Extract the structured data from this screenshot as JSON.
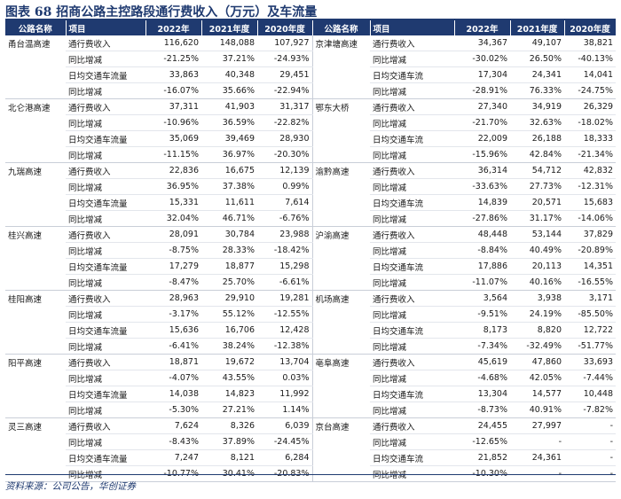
{
  "title": "图表 68  招商公路主控路段通行费收入（万元）及车流量",
  "headers": [
    "公路名称",
    "项目",
    "2022年",
    "2021年度",
    "2020年度",
    "公路名称",
    "项目",
    "2022年",
    "2021年度",
    "2020年度"
  ],
  "left_groups": [
    {
      "road": "甬台温高速",
      "rows": [
        [
          "通行费收入",
          "116,620",
          "148,088",
          "107,927"
        ],
        [
          "同比增减",
          "-21.25%",
          "37.21%",
          "-24.93%"
        ],
        [
          "日均交通车流量",
          "33,863",
          "40,348",
          "29,451"
        ],
        [
          "同比增减",
          "-16.07%",
          "35.66%",
          "-22.94%"
        ]
      ]
    },
    {
      "road": "北仑港高速",
      "rows": [
        [
          "通行费收入",
          "37,311",
          "41,903",
          "31,317"
        ],
        [
          "同比增减",
          "-10.96%",
          "36.59%",
          "-22.82%"
        ],
        [
          "日均交通车流量",
          "35,069",
          "39,469",
          "28,930"
        ],
        [
          "同比增减",
          "-11.15%",
          "36.97%",
          "-20.30%"
        ]
      ]
    },
    {
      "road": "九瑞高速",
      "rows": [
        [
          "通行费收入",
          "22,836",
          "16,675",
          "12,139"
        ],
        [
          "同比增减",
          "36.95%",
          "37.38%",
          "0.99%"
        ],
        [
          "日均交通车流量",
          "15,331",
          "11,611",
          "7,614"
        ],
        [
          "同比增减",
          "32.04%",
          "46.71%",
          "-6.76%"
        ]
      ]
    },
    {
      "road": "桂兴高速",
      "rows": [
        [
          "通行费收入",
          "28,091",
          "30,784",
          "23,988"
        ],
        [
          "同比增减",
          "-8.75%",
          "28.33%",
          "-18.42%"
        ],
        [
          "日均交通车流量",
          "17,279",
          "18,877",
          "15,298"
        ],
        [
          "同比增减",
          "-8.47%",
          "25.70%",
          "-6.61%"
        ]
      ]
    },
    {
      "road": "桂阳高速",
      "rows": [
        [
          "通行费收入",
          "28,963",
          "29,910",
          "19,281"
        ],
        [
          "同比增减",
          "-3.17%",
          "55.12%",
          "-12.55%"
        ],
        [
          "日均交通车流量",
          "15,636",
          "16,706",
          "12,428"
        ],
        [
          "同比增减",
          "-6.41%",
          "38.24%",
          "-12.38%"
        ]
      ]
    },
    {
      "road": "阳平高速",
      "rows": [
        [
          "通行费收入",
          "18,871",
          "19,672",
          "13,704"
        ],
        [
          "同比增减",
          "-4.07%",
          "43.55%",
          "0.03%"
        ],
        [
          "日均交通车流量",
          "14,038",
          "14,823",
          "11,992"
        ],
        [
          "同比增减",
          "-5.30%",
          "27.21%",
          "1.14%"
        ]
      ]
    },
    {
      "road": "灵三高速",
      "rows": [
        [
          "通行费收入",
          "7,624",
          "8,326",
          "6,039"
        ],
        [
          "同比增减",
          "-8.43%",
          "37.89%",
          "-24.45%"
        ],
        [
          "日均交通车流量",
          "7,247",
          "8,121",
          "6,284"
        ],
        [
          "同比增减",
          "-10.77%",
          "30.41%",
          "-20.83%"
        ]
      ]
    }
  ],
  "right_groups": [
    {
      "road": "京津塘高速",
      "rows": [
        [
          "通行费收入",
          "34,367",
          "49,107",
          "38,821"
        ],
        [
          "同比增减",
          "-30.02%",
          "26.50%",
          "-40.13%"
        ],
        [
          "日均交通车流",
          "17,304",
          "24,341",
          "14,041"
        ],
        [
          "同比增减",
          "-28.91%",
          "76.33%",
          "-24.75%"
        ]
      ]
    },
    {
      "road": "鄂东大桥",
      "rows": [
        [
          "通行费收入",
          "27,340",
          "34,919",
          "26,329"
        ],
        [
          "同比增减",
          "-21.70%",
          "32.63%",
          "-18.02%"
        ],
        [
          "日均交通车流",
          "22,009",
          "26,188",
          "18,333"
        ],
        [
          "同比增减",
          "-15.96%",
          "42.84%",
          "-21.34%"
        ]
      ]
    },
    {
      "road": "渝黔高速",
      "rows": [
        [
          "通行费收入",
          "36,314",
          "54,712",
          "42,832"
        ],
        [
          "同比增减",
          "-33.63%",
          "27.73%",
          "-12.31%"
        ],
        [
          "日均交通车流",
          "14,839",
          "20,571",
          "15,683"
        ],
        [
          "同比增减",
          "-27.86%",
          "31.17%",
          "-14.06%"
        ]
      ]
    },
    {
      "road": "沪渝高速",
      "rows": [
        [
          "通行费收入",
          "48,448",
          "53,144",
          "37,829"
        ],
        [
          "同比增减",
          "-8.84%",
          "40.49%",
          "-20.89%"
        ],
        [
          "日均交通车流",
          "17,886",
          "20,113",
          "14,351"
        ],
        [
          "同比增减",
          "-11.07%",
          "40.16%",
          "-16.55%"
        ]
      ]
    },
    {
      "road": "机场高速",
      "rows": [
        [
          "通行费收入",
          "3,564",
          "3,938",
          "3,171"
        ],
        [
          "同比增减",
          "-9.51%",
          "24.19%",
          "-85.50%"
        ],
        [
          "日均交通车流",
          "8,173",
          "8,820",
          "12,722"
        ],
        [
          "同比增减",
          "-7.34%",
          "-32.49%",
          "-51.77%"
        ]
      ]
    },
    {
      "road": "亳阜高速",
      "rows": [
        [
          "通行费收入",
          "45,619",
          "47,860",
          "33,693"
        ],
        [
          "同比增减",
          "-4.68%",
          "42.05%",
          "-7.44%"
        ],
        [
          "日均交通车流",
          "13,304",
          "14,577",
          "10,448"
        ],
        [
          "同比增减",
          "-8.73%",
          "40.91%",
          "-7.82%"
        ]
      ]
    },
    {
      "road": "京台高速",
      "rows": [
        [
          "通行费收入",
          "24,455",
          "27,997",
          "-"
        ],
        [
          "同比增减",
          "-12.65%",
          "-",
          "-"
        ],
        [
          "日均交通车流",
          "21,852",
          "24,361",
          "-"
        ],
        [
          "同比增减",
          "-10.30%",
          "-",
          "-"
        ]
      ]
    }
  ],
  "source": "资料来源：公司公告，华创证券"
}
